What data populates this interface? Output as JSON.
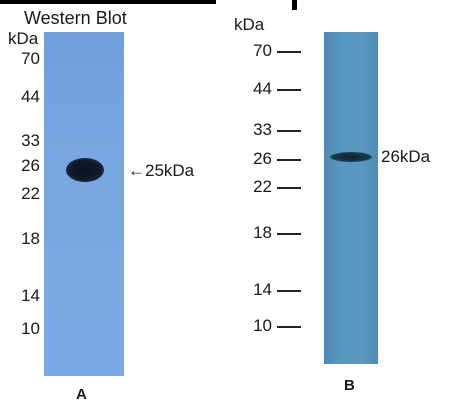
{
  "figure": {
    "title": "Western Blot",
    "panel_a": {
      "letter": "A",
      "unit": "kDa",
      "markers": [
        "70",
        "44",
        "33",
        "26",
        "22",
        "18",
        "14",
        "10"
      ],
      "band_label": "←25kDa"
    },
    "panel_b": {
      "letter": "B",
      "unit": "kDa",
      "markers": [
        "70",
        "44",
        "33",
        "26",
        "22",
        "18",
        "14",
        "10"
      ],
      "band_label": "26kDa"
    }
  }
}
